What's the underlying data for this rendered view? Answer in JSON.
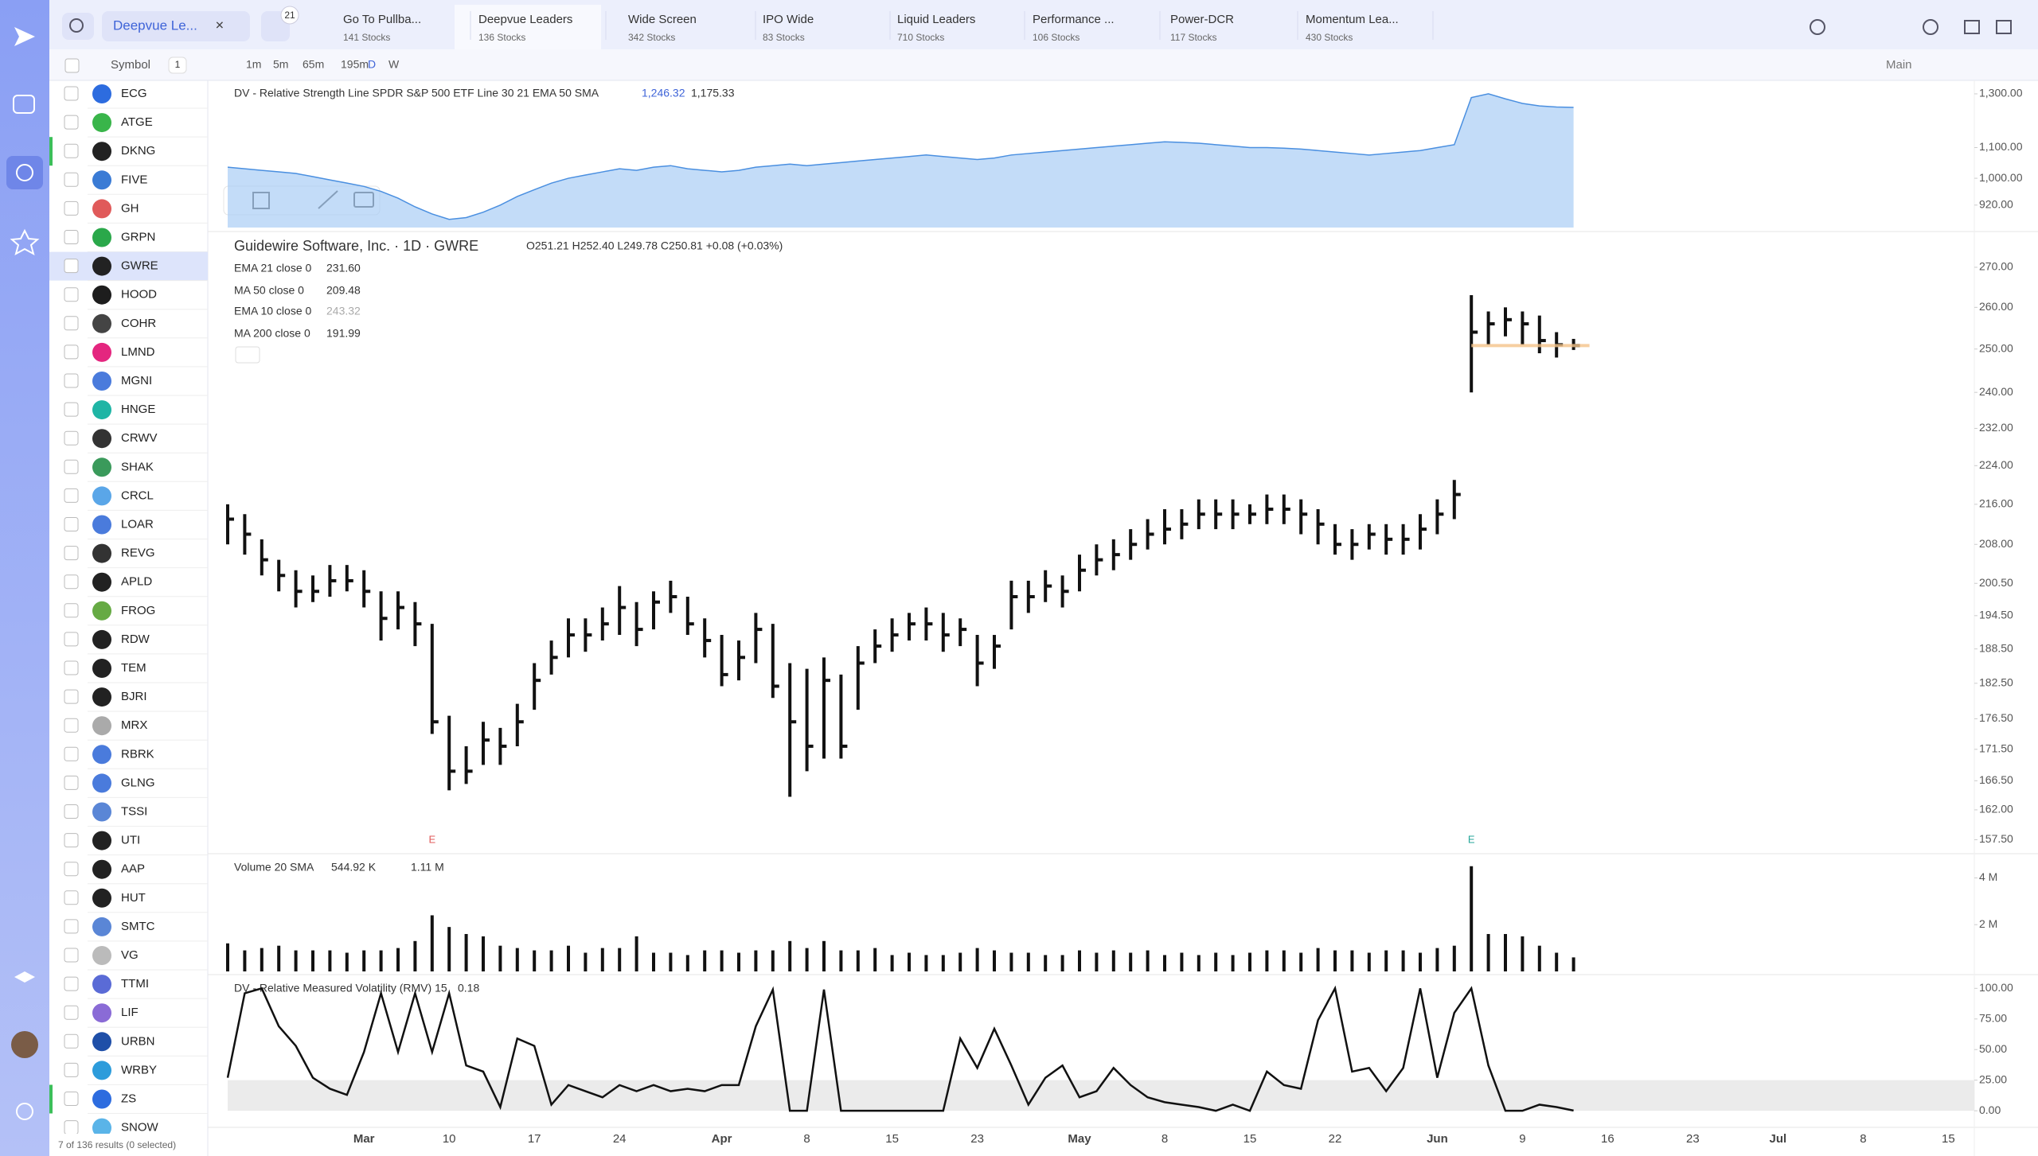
{
  "header": {
    "list_name": "Deepvue Le...",
    "badge": "21",
    "tabs": [
      {
        "name": "Go To Pullba...",
        "count": "141 Stocks"
      },
      {
        "name": "Deepvue Leaders",
        "count": "136 Stocks"
      },
      {
        "name": "Wide Screen",
        "count": "342 Stocks"
      },
      {
        "name": "IPO Wide",
        "count": "83 Stocks"
      },
      {
        "name": "Liquid Leaders",
        "count": "710 Stocks"
      },
      {
        "name": "Performance ...",
        "count": "106 Stocks"
      },
      {
        "name": "Power-DCR",
        "count": "117 Stocks"
      },
      {
        "name": "Momentum Lea...",
        "count": "430 Stocks"
      }
    ]
  },
  "toolbar": {
    "column": "Symbol",
    "count": "1",
    "intervals": [
      "1m",
      "5m",
      "65m",
      "195m",
      "D",
      "W"
    ],
    "layout": "Main"
  },
  "watchlist": {
    "symbols": [
      "ECG",
      "ATGE",
      "DKNG",
      "FIVE",
      "GH",
      "GRPN",
      "GWRE",
      "HOOD",
      "COHR",
      "LMND",
      "MGNI",
      "HNGE",
      "CRWV",
      "SHAK",
      "CRCL",
      "LOAR",
      "REVG",
      "APLD",
      "FROG",
      "RDW",
      "TEM",
      "BJRI",
      "MRX",
      "RBRK",
      "GLNG",
      "TSSI",
      "UTI",
      "AAP",
      "HUT",
      "SMTC",
      "VG",
      "TTMI",
      "LIF",
      "URBN",
      "WRBY",
      "ZS",
      "SNOW"
    ],
    "footer": "7 of 136 results (0 selected)"
  },
  "chart_data": [
    {
      "type": "ohlc",
      "title": "Guidewire Software, Inc. · 1D · GWRE",
      "ohlc": "O251.21 H252.40 L249.78 C250.81 +0.08 (+0.03%)",
      "color": "#111111",
      "log_scale": true,
      "indicators": [
        {
          "name": "EMA 21 close 0",
          "value": "231.60"
        },
        {
          "name": "MA 50 close 0",
          "value": "209.48"
        },
        {
          "name": "EMA 10 close 0",
          "value": "243.32"
        },
        {
          "name": "MA 200 close 0",
          "value": "191.99"
        }
      ],
      "annotations": [
        {
          "text": "E",
          "color": "#e05a5a"
        },
        {
          "text": "E",
          "color": "#26a69a"
        }
      ],
      "categories": [
        null,
        null,
        null,
        null,
        null,
        null,
        null,
        null,
        "Mar",
        null,
        null,
        null,
        null,
        "10",
        null,
        null,
        null,
        null,
        "17",
        null,
        null,
        null,
        null,
        "24",
        null,
        null,
        null,
        null,
        null,
        "Apr",
        null,
        null,
        null,
        null,
        "8",
        null,
        null,
        null,
        null,
        "15",
        null,
        null,
        null,
        null,
        "23",
        null,
        null,
        null,
        null,
        null,
        "May",
        null,
        null,
        null,
        null,
        "8",
        null,
        null,
        null,
        null,
        "15",
        null,
        null,
        null,
        null,
        "22",
        null,
        null,
        null,
        null,
        null,
        "Jun",
        null,
        null,
        null,
        null,
        "9",
        null,
        null,
        null,
        null,
        "16",
        null,
        null,
        null,
        null,
        "23",
        null,
        null,
        null,
        null,
        "Jul",
        null,
        null,
        null,
        null,
        "8",
        null,
        null,
        null,
        null,
        "15"
      ],
      "high": [
        216,
        214,
        209,
        205,
        203,
        202,
        204,
        204,
        203,
        199,
        199,
        197,
        193,
        177,
        172,
        176,
        175,
        179,
        186,
        190,
        194,
        194,
        196,
        200,
        197,
        199,
        201,
        198,
        194,
        191,
        190,
        195,
        193,
        186,
        185,
        187,
        184,
        189,
        192,
        194,
        195,
        196,
        195,
        194,
        191,
        191,
        201,
        201,
        203,
        202,
        206,
        208,
        209,
        211,
        213,
        215,
        215,
        217,
        217,
        217,
        216,
        218,
        218,
        217,
        215,
        212,
        211,
        212,
        212,
        212,
        214,
        217,
        221,
        263,
        259,
        260,
        259,
        258,
        254,
        252.4,
        null,
        null,
        null,
        null,
        null,
        null,
        null,
        null,
        null,
        null,
        null,
        null,
        null,
        null,
        null,
        null,
        null,
        null,
        null,
        null,
        null,
        null
      ],
      "low": [
        208,
        206,
        202,
        199,
        196,
        197,
        198,
        199,
        196,
        190,
        192,
        189,
        174,
        165,
        166,
        169,
        169,
        172,
        178,
        184,
        187,
        188,
        190,
        191,
        189,
        192,
        195,
        191,
        187,
        182,
        183,
        186,
        180,
        164,
        168,
        170,
        170,
        178,
        186,
        188,
        190,
        190,
        188,
        189,
        182,
        185,
        192,
        195,
        197,
        196,
        199,
        202,
        203,
        205,
        207,
        208,
        209,
        211,
        211,
        211,
        212,
        212,
        212,
        210,
        208,
        206,
        205,
        207,
        206,
        206,
        207,
        210,
        213,
        240,
        251,
        253,
        251,
        249,
        248,
        249.78,
        null,
        null,
        null,
        null,
        null,
        null,
        null,
        null,
        null,
        null,
        null,
        null,
        null,
        null,
        null,
        null,
        null,
        null,
        null,
        null,
        null,
        null
      ],
      "close": [
        213,
        210,
        205,
        202,
        199,
        199,
        201,
        201,
        199,
        194,
        196,
        193,
        176,
        168,
        168,
        173,
        172,
        176,
        183,
        187,
        191,
        191,
        193,
        196,
        192,
        197,
        198,
        193,
        190,
        184,
        187,
        192,
        182,
        176,
        172,
        183,
        172,
        186,
        189,
        191,
        193,
        193,
        191,
        192,
        186,
        189,
        198,
        198,
        200,
        199,
        203,
        205,
        206,
        208,
        210,
        211,
        212,
        214,
        214,
        214,
        214,
        215,
        215,
        214,
        212,
        208,
        208,
        210,
        209,
        209,
        211,
        214,
        218,
        254,
        256,
        257,
        256,
        252,
        251,
        250.81,
        null,
        null,
        null,
        null,
        null,
        null,
        null,
        null,
        null,
        null,
        null,
        null,
        null,
        null,
        null,
        null,
        null,
        null,
        null,
        null,
        null,
        null
      ],
      "ylim": [
        155.8,
        275.3
      ],
      "yticks": [
        {
          "value": 270,
          "label": "270.00"
        },
        {
          "value": 260,
          "label": "260.00"
        },
        {
          "value": 250,
          "label": "250.00"
        },
        {
          "value": 240,
          "label": "240.00"
        },
        {
          "value": 232,
          "label": "232.00"
        },
        {
          "value": 224,
          "label": "224.00"
        },
        {
          "value": 216,
          "label": "216.00"
        },
        {
          "value": 208,
          "label": "208.00"
        },
        {
          "value": 200.5,
          "label": "200.50"
        },
        {
          "value": 194.5,
          "label": "194.50"
        },
        {
          "value": 188.5,
          "label": "188.50"
        },
        {
          "value": 182.5,
          "label": "182.50"
        },
        {
          "value": 176.5,
          "label": "176.50"
        },
        {
          "value": 171.5,
          "label": "171.50"
        },
        {
          "value": 166.5,
          "label": "166.50"
        },
        {
          "value": 162,
          "label": "162.00"
        },
        {
          "value": 157.5,
          "label": "157.50"
        }
      ],
      "current_color": "#f5c48a"
    },
    {
      "type": "bar",
      "title": "Volume 20 SMA",
      "legend_values": [
        "544.92 K",
        "1.11 M"
      ],
      "color": "#111111",
      "values": [
        1.2,
        0.9,
        1.0,
        1.1,
        0.9,
        0.9,
        0.9,
        0.8,
        0.9,
        0.9,
        1.0,
        1.3,
        2.4,
        1.9,
        1.6,
        1.5,
        1.1,
        1.0,
        0.9,
        0.9,
        1.1,
        0.8,
        1.0,
        1.0,
        1.5,
        0.8,
        0.8,
        0.7,
        0.9,
        0.9,
        0.8,
        0.9,
        0.9,
        1.3,
        1.0,
        1.3,
        0.9,
        0.9,
        1.0,
        0.7,
        0.8,
        0.7,
        0.7,
        0.8,
        1.0,
        0.9,
        0.8,
        0.8,
        0.7,
        0.7,
        0.9,
        0.8,
        0.9,
        0.8,
        0.9,
        0.7,
        0.8,
        0.7,
        0.8,
        0.7,
        0.8,
        0.9,
        0.9,
        0.8,
        1.0,
        0.9,
        0.9,
        0.8,
        0.9,
        0.9,
        0.8,
        1.0,
        1.1,
        4.5,
        1.6,
        1.6,
        1.5,
        1.1,
        0.8,
        0.6
      ],
      "ylim": [
        0,
        4.9
      ],
      "yticks": [
        {
          "value": 4,
          "label": "4 M"
        },
        {
          "value": 2,
          "label": "2 M"
        }
      ]
    },
    {
      "type": "line",
      "title": "DV - Relative Measured Volatility (RMV) 15",
      "legend_value": "0.18",
      "color": "#111111",
      "band_color": "#ebebeb",
      "values": [
        27,
        96,
        100,
        69,
        53,
        27,
        18,
        13,
        48,
        96,
        48,
        96,
        48,
        96,
        37,
        32,
        3,
        59,
        53,
        5,
        21,
        16,
        11,
        21,
        16,
        21,
        16,
        18,
        16,
        21,
        21,
        69,
        99,
        0,
        0,
        99,
        0,
        0,
        0,
        0,
        0,
        0,
        0,
        59,
        35,
        67,
        37,
        5,
        27,
        37,
        11,
        16,
        35,
        21,
        11,
        7,
        5,
        3,
        0,
        5,
        0,
        32,
        21,
        18,
        74,
        100,
        32,
        35,
        16,
        35,
        100,
        27,
        80,
        100,
        37,
        0,
        0,
        5,
        3,
        0.18
      ],
      "ylim": [
        -9,
        108
      ],
      "yticks": [
        {
          "value": 100,
          "label": "100.00"
        },
        {
          "value": 75,
          "label": "75.00"
        },
        {
          "value": 50,
          "label": "50.00"
        },
        {
          "value": 25,
          "label": "25.00"
        },
        {
          "value": 0,
          "label": "0.00"
        }
      ]
    },
    {
      "type": "area",
      "title": "DV - Relative Strength Line SPDR S&P 500 ETF Line 30 21 EMA 50 SMA",
      "legend_values": [
        "1,246.32",
        "1,175.33"
      ],
      "color": "#aacdf5",
      "line_color": "#4a8fe0",
      "log_scale": true,
      "values": [
        1035,
        1030,
        1025,
        1020,
        1015,
        1005,
        995,
        985,
        975,
        960,
        940,
        915,
        895,
        880,
        885,
        900,
        920,
        945,
        965,
        985,
        1000,
        1010,
        1020,
        1030,
        1025,
        1035,
        1040,
        1030,
        1025,
        1020,
        1025,
        1035,
        1040,
        1045,
        1040,
        1045,
        1050,
        1055,
        1060,
        1065,
        1070,
        1075,
        1070,
        1065,
        1060,
        1065,
        1075,
        1080,
        1085,
        1090,
        1095,
        1100,
        1105,
        1110,
        1115,
        1120,
        1118,
        1115,
        1110,
        1105,
        1100,
        1100,
        1098,
        1095,
        1090,
        1085,
        1080,
        1075,
        1080,
        1085,
        1090,
        1100,
        1110,
        1285,
        1300,
        1280,
        1262,
        1252,
        1248,
        1246.32
      ],
      "ylim": [
        858,
        1339
      ],
      "yticks": [
        {
          "value": 1300,
          "label": "1,300.00"
        },
        {
          "value": 1100,
          "label": "1,100.00"
        },
        {
          "value": 1000,
          "label": "1,000.00"
        },
        {
          "value": 920,
          "label": "920.00"
        }
      ]
    }
  ]
}
